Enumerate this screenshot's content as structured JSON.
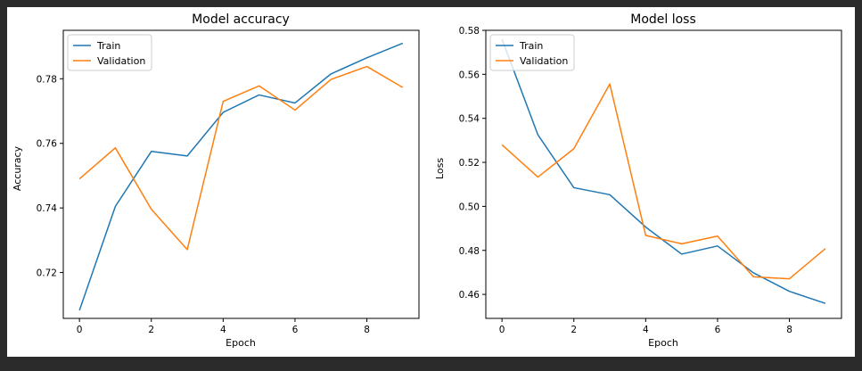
{
  "chart_data": [
    {
      "type": "line",
      "title": "Model accuracy",
      "xlabel": "Epoch",
      "ylabel": "Accuracy",
      "xlim": [
        -0.45,
        9.45
      ],
      "ylim": [
        0.7058,
        0.795
      ],
      "xticks": [
        0,
        2,
        4,
        6,
        8
      ],
      "yticks": [
        0.72,
        0.74,
        0.76,
        0.78
      ],
      "ytick_labels": [
        "0.72",
        "0.74",
        "0.76",
        "0.78"
      ],
      "legend": "top-left",
      "x": [
        0,
        1,
        2,
        3,
        4,
        5,
        6,
        7,
        8,
        9
      ],
      "series": [
        {
          "name": "Train",
          "color": "#1f77b4",
          "values": [
            0.7083,
            0.7405,
            0.7575,
            0.7561,
            0.7696,
            0.775,
            0.7725,
            0.7815,
            0.7865,
            0.791
          ]
        },
        {
          "name": "Validation",
          "color": "#ff7f0e",
          "values": [
            0.749,
            0.7586,
            0.7396,
            0.7271,
            0.773,
            0.7778,
            0.7703,
            0.7798,
            0.7838,
            0.7773
          ]
        }
      ]
    },
    {
      "type": "line",
      "title": "Model loss",
      "xlabel": "Epoch",
      "ylabel": "Loss",
      "xlim": [
        -0.45,
        9.45
      ],
      "ylim": [
        0.4491,
        0.58
      ],
      "xticks": [
        0,
        2,
        4,
        6,
        8
      ],
      "yticks": [
        0.46,
        0.48,
        0.5,
        0.52,
        0.54,
        0.56,
        0.58
      ],
      "ytick_labels": [
        "0.46",
        "0.48",
        "0.50",
        "0.52",
        "0.54",
        "0.56",
        "0.58"
      ],
      "legend": "top-left",
      "x": [
        0,
        1,
        2,
        3,
        4,
        5,
        6,
        7,
        8,
        9
      ],
      "series": [
        {
          "name": "Train",
          "color": "#1f77b4",
          "values": [
            0.576,
            0.5325,
            0.5085,
            0.5053,
            0.4906,
            0.4783,
            0.482,
            0.4698,
            0.4614,
            0.4559
          ]
        },
        {
          "name": "Validation",
          "color": "#ff7f0e",
          "values": [
            0.528,
            0.5133,
            0.5262,
            0.5556,
            0.4868,
            0.483,
            0.4865,
            0.468,
            0.4671,
            0.4808
          ]
        }
      ]
    }
  ]
}
